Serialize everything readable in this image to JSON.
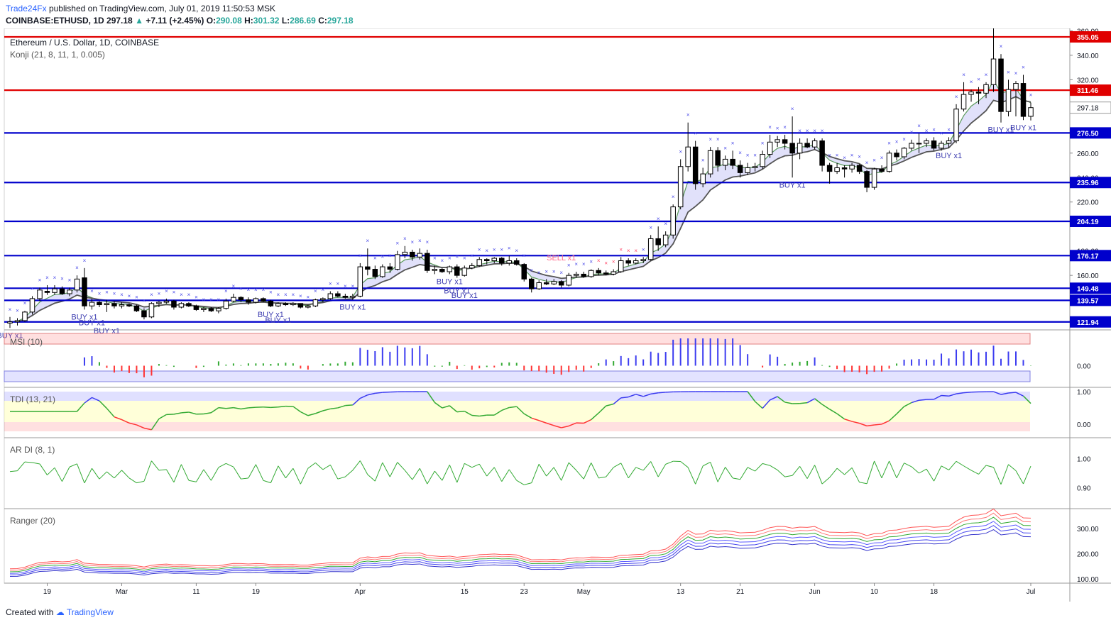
{
  "header": {
    "brand": "Trade24Fx",
    "published": "published on TradingView.com, July 01, 2019 11:50:53 MSK",
    "symbol": "COINBASE:ETHUSD, 1D",
    "last": "297.18",
    "change": "+7.11 (+2.45%)",
    "open_label": "O:",
    "open": "290.08",
    "high_label": "H:",
    "high": "301.32",
    "low_label": "L:",
    "low": "286.69",
    "close_label": "C:",
    "close": "297.18"
  },
  "footer": {
    "created": "Created with",
    "brand": "TradingView"
  },
  "colors": {
    "up": "#26a69a",
    "down": "#ef5350",
    "red_level": "#e00000",
    "blue_level": "#0000cc",
    "grid": "#e8e8e8",
    "indicator_blue": "#3c3cf0",
    "indicator_red": "#ff3333",
    "indicator_green": "#33aa33"
  },
  "chart_data": {
    "type": "candlestick",
    "title": "Ethereum / U.S. Dollar, 1D, COINBASE",
    "indicator_label": "Konji (21, 8, 11, 1, 0.005)",
    "x_ticks": [
      "19",
      "Mar",
      "11",
      "19",
      "Apr",
      "15",
      "23",
      "May",
      "13",
      "21",
      "Jun",
      "10",
      "18",
      "Jul"
    ],
    "price_ticks": [
      160.0,
      180.0,
      220.0,
      240.0,
      260.0,
      297.18,
      320.0,
      340.0,
      360.0
    ],
    "price_range": [
      116,
      362
    ],
    "levels": [
      {
        "value": 355.05,
        "color": "red"
      },
      {
        "value": 311.46,
        "color": "red"
      },
      {
        "value": 276.5,
        "color": "blue"
      },
      {
        "value": 235.96,
        "color": "blue"
      },
      {
        "value": 204.19,
        "color": "blue"
      },
      {
        "value": 176.17,
        "color": "blue"
      },
      {
        "value": 149.48,
        "color": "blue"
      },
      {
        "value": 139.57,
        "color": "blue"
      },
      {
        "value": 121.94,
        "color": "blue"
      }
    ],
    "last_price": 297.18,
    "signals": [
      {
        "label": "BUY x1",
        "date": "Feb 14"
      },
      {
        "label": "BUY x1",
        "date": "Feb 24"
      },
      {
        "label": "BUY x1",
        "date": "Feb 25"
      },
      {
        "label": "BUY x1",
        "date": "Feb 27"
      },
      {
        "label": "BUY x1",
        "date": "Mar 21"
      },
      {
        "label": "BUY x1",
        "date": "Mar 22"
      },
      {
        "label": "BUY x1",
        "date": "Apr 1"
      },
      {
        "label": "BUY x1",
        "date": "Apr 14"
      },
      {
        "label": "BUY x1",
        "date": "Apr 15"
      },
      {
        "label": "BUY x1",
        "date": "Apr 16"
      },
      {
        "label": "SELL x1",
        "date": "Apr 29"
      },
      {
        "label": "BUY x1",
        "date": "May 30"
      },
      {
        "label": "BUY x1",
        "date": "Jun 20"
      },
      {
        "label": "BUY x1",
        "date": "Jun 27"
      },
      {
        "label": "BUY x1",
        "date": "Jun 30"
      }
    ],
    "ohlc": [
      {
        "d": "Feb 14",
        "o": 121,
        "h": 126,
        "l": 117,
        "c": 122
      },
      {
        "d": "Feb 15",
        "o": 122,
        "h": 125,
        "l": 119,
        "c": 123
      },
      {
        "d": "Feb 16",
        "o": 123,
        "h": 131,
        "l": 122,
        "c": 130
      },
      {
        "d": "Feb 17",
        "o": 130,
        "h": 143,
        "l": 128,
        "c": 141
      },
      {
        "d": "Feb 18",
        "o": 141,
        "h": 150,
        "l": 139,
        "c": 148
      },
      {
        "d": "Feb 19",
        "o": 147,
        "h": 152,
        "l": 144,
        "c": 146
      },
      {
        "d": "Feb 20",
        "o": 146,
        "h": 152,
        "l": 144,
        "c": 149
      },
      {
        "d": "Feb 21",
        "o": 149,
        "h": 151,
        "l": 144,
        "c": 145
      },
      {
        "d": "Feb 22",
        "o": 145,
        "h": 150,
        "l": 143,
        "c": 148
      },
      {
        "d": "Feb 23",
        "o": 148,
        "h": 160,
        "l": 146,
        "c": 157
      },
      {
        "d": "Feb 24",
        "o": 158,
        "h": 166,
        "l": 132,
        "c": 135
      },
      {
        "d": "Feb 25",
        "o": 135,
        "h": 141,
        "l": 132,
        "c": 138
      },
      {
        "d": "Feb 26",
        "o": 138,
        "h": 139,
        "l": 134,
        "c": 136
      },
      {
        "d": "Feb 27",
        "o": 136,
        "h": 140,
        "l": 130,
        "c": 137
      },
      {
        "d": "Feb 28",
        "o": 137,
        "h": 139,
        "l": 133,
        "c": 135
      },
      {
        "d": "Mar 1",
        "o": 135,
        "h": 138,
        "l": 133,
        "c": 136
      },
      {
        "d": "Mar 2",
        "o": 136,
        "h": 137,
        "l": 134,
        "c": 135
      },
      {
        "d": "Mar 3",
        "o": 135,
        "h": 136,
        "l": 130,
        "c": 131
      },
      {
        "d": "Mar 4",
        "o": 131,
        "h": 133,
        "l": 124,
        "c": 126
      },
      {
        "d": "Mar 5",
        "o": 126,
        "h": 138,
        "l": 125,
        "c": 137
      },
      {
        "d": "Mar 6",
        "o": 137,
        "h": 139,
        "l": 134,
        "c": 138
      },
      {
        "d": "Mar 7",
        "o": 138,
        "h": 141,
        "l": 137,
        "c": 139
      },
      {
        "d": "Mar 8",
        "o": 139,
        "h": 140,
        "l": 132,
        "c": 134
      },
      {
        "d": "Mar 9",
        "o": 134,
        "h": 138,
        "l": 133,
        "c": 137
      },
      {
        "d": "Mar 10",
        "o": 137,
        "h": 138,
        "l": 134,
        "c": 135
      },
      {
        "d": "Mar 11",
        "o": 135,
        "h": 136,
        "l": 131,
        "c": 132
      },
      {
        "d": "Mar 12",
        "o": 132,
        "h": 134,
        "l": 130,
        "c": 133
      },
      {
        "d": "Mar 13",
        "o": 133,
        "h": 134,
        "l": 130,
        "c": 131
      },
      {
        "d": "Mar 14",
        "o": 131,
        "h": 134,
        "l": 129,
        "c": 133
      },
      {
        "d": "Mar 15",
        "o": 133,
        "h": 141,
        "l": 132,
        "c": 139
      },
      {
        "d": "Mar 16",
        "o": 139,
        "h": 145,
        "l": 138,
        "c": 142
      },
      {
        "d": "Mar 17",
        "o": 142,
        "h": 143,
        "l": 138,
        "c": 140
      },
      {
        "d": "Mar 18",
        "o": 140,
        "h": 142,
        "l": 136,
        "c": 138
      },
      {
        "d": "Mar 19",
        "o": 138,
        "h": 142,
        "l": 137,
        "c": 141
      },
      {
        "d": "Mar 20",
        "o": 141,
        "h": 142,
        "l": 138,
        "c": 139
      },
      {
        "d": "Mar 21",
        "o": 139,
        "h": 140,
        "l": 134,
        "c": 135
      },
      {
        "d": "Mar 22",
        "o": 135,
        "h": 138,
        "l": 134,
        "c": 137
      },
      {
        "d": "Mar 23",
        "o": 137,
        "h": 138,
        "l": 135,
        "c": 136
      },
      {
        "d": "Mar 24",
        "o": 136,
        "h": 138,
        "l": 135,
        "c": 137
      },
      {
        "d": "Mar 25",
        "o": 137,
        "h": 137,
        "l": 133,
        "c": 134
      },
      {
        "d": "Mar 26",
        "o": 134,
        "h": 136,
        "l": 133,
        "c": 135
      },
      {
        "d": "Mar 27",
        "o": 135,
        "h": 141,
        "l": 134,
        "c": 140
      },
      {
        "d": "Mar 28",
        "o": 140,
        "h": 142,
        "l": 138,
        "c": 141
      },
      {
        "d": "Mar 29",
        "o": 141,
        "h": 147,
        "l": 140,
        "c": 145
      },
      {
        "d": "Mar 30",
        "o": 145,
        "h": 147,
        "l": 142,
        "c": 143
      },
      {
        "d": "Mar 31",
        "o": 143,
        "h": 145,
        "l": 141,
        "c": 142
      },
      {
        "d": "Apr 1",
        "o": 142,
        "h": 145,
        "l": 140,
        "c": 143
      },
      {
        "d": "Apr 2",
        "o": 143,
        "h": 170,
        "l": 142,
        "c": 167
      },
      {
        "d": "Apr 3",
        "o": 167,
        "h": 182,
        "l": 160,
        "c": 165
      },
      {
        "d": "Apr 4",
        "o": 165,
        "h": 168,
        "l": 157,
        "c": 159
      },
      {
        "d": "Apr 5",
        "o": 159,
        "h": 169,
        "l": 158,
        "c": 167
      },
      {
        "d": "Apr 6",
        "o": 167,
        "h": 170,
        "l": 162,
        "c": 165
      },
      {
        "d": "Apr 7",
        "o": 165,
        "h": 180,
        "l": 164,
        "c": 177
      },
      {
        "d": "Apr 8",
        "o": 177,
        "h": 184,
        "l": 174,
        "c": 179
      },
      {
        "d": "Apr 9",
        "o": 179,
        "h": 181,
        "l": 172,
        "c": 175
      },
      {
        "d": "Apr 10",
        "o": 175,
        "h": 182,
        "l": 173,
        "c": 178
      },
      {
        "d": "Apr 11",
        "o": 178,
        "h": 181,
        "l": 162,
        "c": 164
      },
      {
        "d": "Apr 12",
        "o": 164,
        "h": 168,
        "l": 161,
        "c": 165
      },
      {
        "d": "Apr 13",
        "o": 165,
        "h": 166,
        "l": 162,
        "c": 163
      },
      {
        "d": "Apr 14",
        "o": 163,
        "h": 168,
        "l": 161,
        "c": 167
      },
      {
        "d": "Apr 15",
        "o": 167,
        "h": 169,
        "l": 158,
        "c": 160
      },
      {
        "d": "Apr 16",
        "o": 160,
        "h": 168,
        "l": 159,
        "c": 166
      },
      {
        "d": "Apr 17",
        "o": 166,
        "h": 170,
        "l": 165,
        "c": 168
      },
      {
        "d": "Apr 18",
        "o": 168,
        "h": 175,
        "l": 167,
        "c": 173
      },
      {
        "d": "Apr 19",
        "o": 173,
        "h": 174,
        "l": 169,
        "c": 172
      },
      {
        "d": "Apr 20",
        "o": 172,
        "h": 175,
        "l": 170,
        "c": 174
      },
      {
        "d": "Apr 21",
        "o": 174,
        "h": 175,
        "l": 168,
        "c": 170
      },
      {
        "d": "Apr 22",
        "o": 170,
        "h": 176,
        "l": 168,
        "c": 172
      },
      {
        "d": "Apr 23",
        "o": 172,
        "h": 174,
        "l": 168,
        "c": 169
      },
      {
        "d": "Apr 24",
        "o": 169,
        "h": 170,
        "l": 155,
        "c": 157
      },
      {
        "d": "Apr 25",
        "o": 157,
        "h": 158,
        "l": 146,
        "c": 149
      },
      {
        "d": "Apr 26",
        "o": 149,
        "h": 156,
        "l": 148,
        "c": 154
      },
      {
        "d": "Apr 27",
        "o": 154,
        "h": 157,
        "l": 152,
        "c": 153
      },
      {
        "d": "Apr 28",
        "o": 153,
        "h": 157,
        "l": 152,
        "c": 155
      },
      {
        "d": "Apr 29",
        "o": 155,
        "h": 156,
        "l": 150,
        "c": 152
      },
      {
        "d": "Apr 30",
        "o": 152,
        "h": 162,
        "l": 151,
        "c": 160
      },
      {
        "d": "May 1",
        "o": 160,
        "h": 163,
        "l": 158,
        "c": 161
      },
      {
        "d": "May 2",
        "o": 161,
        "h": 163,
        "l": 158,
        "c": 159
      },
      {
        "d": "May 3",
        "o": 159,
        "h": 165,
        "l": 158,
        "c": 164
      },
      {
        "d": "May 4",
        "o": 164,
        "h": 166,
        "l": 160,
        "c": 162
      },
      {
        "d": "May 5",
        "o": 162,
        "h": 164,
        "l": 160,
        "c": 161
      },
      {
        "d": "May 6",
        "o": 161,
        "h": 165,
        "l": 160,
        "c": 163
      },
      {
        "d": "May 7",
        "o": 163,
        "h": 175,
        "l": 162,
        "c": 172
      },
      {
        "d": "May 8",
        "o": 172,
        "h": 174,
        "l": 168,
        "c": 170
      },
      {
        "d": "May 9",
        "o": 170,
        "h": 174,
        "l": 169,
        "c": 172
      },
      {
        "d": "May 10",
        "o": 172,
        "h": 175,
        "l": 170,
        "c": 173
      },
      {
        "d": "May 11",
        "o": 173,
        "h": 193,
        "l": 172,
        "c": 190
      },
      {
        "d": "May 12",
        "o": 190,
        "h": 200,
        "l": 180,
        "c": 185
      },
      {
        "d": "May 13",
        "o": 185,
        "h": 196,
        "l": 183,
        "c": 193
      },
      {
        "d": "May 14",
        "o": 193,
        "h": 218,
        "l": 190,
        "c": 216
      },
      {
        "d": "May 15",
        "o": 216,
        "h": 255,
        "l": 214,
        "c": 249
      },
      {
        "d": "May 16",
        "o": 249,
        "h": 285,
        "l": 245,
        "c": 265
      },
      {
        "d": "May 17",
        "o": 265,
        "h": 270,
        "l": 230,
        "c": 235
      },
      {
        "d": "May 18",
        "o": 235,
        "h": 248,
        "l": 232,
        "c": 243
      },
      {
        "d": "May 19",
        "o": 243,
        "h": 265,
        "l": 240,
        "c": 262
      },
      {
        "d": "May 20",
        "o": 262,
        "h": 265,
        "l": 245,
        "c": 250
      },
      {
        "d": "May 21",
        "o": 250,
        "h": 258,
        "l": 246,
        "c": 255
      },
      {
        "d": "May 22",
        "o": 255,
        "h": 262,
        "l": 247,
        "c": 250
      },
      {
        "d": "May 23",
        "o": 250,
        "h": 254,
        "l": 240,
        "c": 244
      },
      {
        "d": "May 24",
        "o": 244,
        "h": 252,
        "l": 242,
        "c": 248
      },
      {
        "d": "May 25",
        "o": 248,
        "h": 252,
        "l": 245,
        "c": 249
      },
      {
        "d": "May 26",
        "o": 249,
        "h": 262,
        "l": 247,
        "c": 259
      },
      {
        "d": "May 27",
        "o": 259,
        "h": 275,
        "l": 256,
        "c": 269
      },
      {
        "d": "May 28",
        "o": 269,
        "h": 274,
        "l": 265,
        "c": 271
      },
      {
        "d": "May 29",
        "o": 271,
        "h": 275,
        "l": 263,
        "c": 268
      },
      {
        "d": "May 30",
        "o": 268,
        "h": 290,
        "l": 240,
        "c": 260
      },
      {
        "d": "May 31",
        "o": 260,
        "h": 272,
        "l": 255,
        "c": 268
      },
      {
        "d": "Jun 1",
        "o": 268,
        "h": 272,
        "l": 264,
        "c": 265
      },
      {
        "d": "Jun 2",
        "o": 265,
        "h": 272,
        "l": 263,
        "c": 270
      },
      {
        "d": "Jun 3",
        "o": 270,
        "h": 272,
        "l": 245,
        "c": 250
      },
      {
        "d": "Jun 4",
        "o": 250,
        "h": 252,
        "l": 235,
        "c": 245
      },
      {
        "d": "Jun 5",
        "o": 245,
        "h": 252,
        "l": 243,
        "c": 248
      },
      {
        "d": "Jun 6",
        "o": 248,
        "h": 250,
        "l": 240,
        "c": 247
      },
      {
        "d": "Jun 7",
        "o": 247,
        "h": 252,
        "l": 244,
        "c": 250
      },
      {
        "d": "Jun 8",
        "o": 250,
        "h": 251,
        "l": 243,
        "c": 245
      },
      {
        "d": "Jun 9",
        "o": 245,
        "h": 246,
        "l": 228,
        "c": 232
      },
      {
        "d": "Jun 10",
        "o": 232,
        "h": 248,
        "l": 230,
        "c": 247
      },
      {
        "d": "Jun 11",
        "o": 247,
        "h": 250,
        "l": 244,
        "c": 245
      },
      {
        "d": "Jun 12",
        "o": 245,
        "h": 262,
        "l": 244,
        "c": 260
      },
      {
        "d": "Jun 13",
        "o": 260,
        "h": 263,
        "l": 254,
        "c": 257
      },
      {
        "d": "Jun 14",
        "o": 257,
        "h": 265,
        "l": 255,
        "c": 264
      },
      {
        "d": "Jun 15",
        "o": 264,
        "h": 271,
        "l": 262,
        "c": 268
      },
      {
        "d": "Jun 16",
        "o": 268,
        "h": 276,
        "l": 260,
        "c": 268
      },
      {
        "d": "Jun 17",
        "o": 268,
        "h": 272,
        "l": 265,
        "c": 270
      },
      {
        "d": "Jun 18",
        "o": 270,
        "h": 273,
        "l": 262,
        "c": 264
      },
      {
        "d": "Jun 19",
        "o": 264,
        "h": 270,
        "l": 262,
        "c": 268
      },
      {
        "d": "Jun 20",
        "o": 268,
        "h": 273,
        "l": 264,
        "c": 270
      },
      {
        "d": "Jun 21",
        "o": 270,
        "h": 300,
        "l": 268,
        "c": 296
      },
      {
        "d": "Jun 22",
        "o": 296,
        "h": 318,
        "l": 294,
        "c": 308
      },
      {
        "d": "Jun 23",
        "o": 308,
        "h": 312,
        "l": 302,
        "c": 310
      },
      {
        "d": "Jun 24",
        "o": 310,
        "h": 314,
        "l": 300,
        "c": 309
      },
      {
        "d": "Jun 25",
        "o": 309,
        "h": 318,
        "l": 305,
        "c": 316
      },
      {
        "d": "Jun 26",
        "o": 316,
        "h": 362,
        "l": 310,
        "c": 337
      },
      {
        "d": "Jun 27",
        "o": 337,
        "h": 341,
        "l": 285,
        "c": 294
      },
      {
        "d": "Jun 28",
        "o": 294,
        "h": 320,
        "l": 290,
        "c": 312
      },
      {
        "d": "Jun 29",
        "o": 312,
        "h": 319,
        "l": 290,
        "c": 317
      },
      {
        "d": "Jun 30",
        "o": 317,
        "h": 324,
        "l": 287,
        "c": 290
      },
      {
        "d": "Jul 1",
        "o": 290.08,
        "h": 301.32,
        "l": 286.69,
        "c": 297.18
      }
    ],
    "panels": [
      {
        "name": "MSI (10)",
        "type": "histogram",
        "ticks": [
          "0.00"
        ]
      },
      {
        "name": "TDI (13, 21)",
        "type": "line",
        "ticks": [
          "1.00",
          "0.00"
        ]
      },
      {
        "name": "AR DI (8, 1)",
        "type": "line",
        "ticks": [
          "1.00",
          "0.90"
        ]
      },
      {
        "name": "Ranger (20)",
        "type": "bands",
        "ticks": [
          "300.00",
          "200.00",
          "100.00"
        ]
      }
    ]
  }
}
